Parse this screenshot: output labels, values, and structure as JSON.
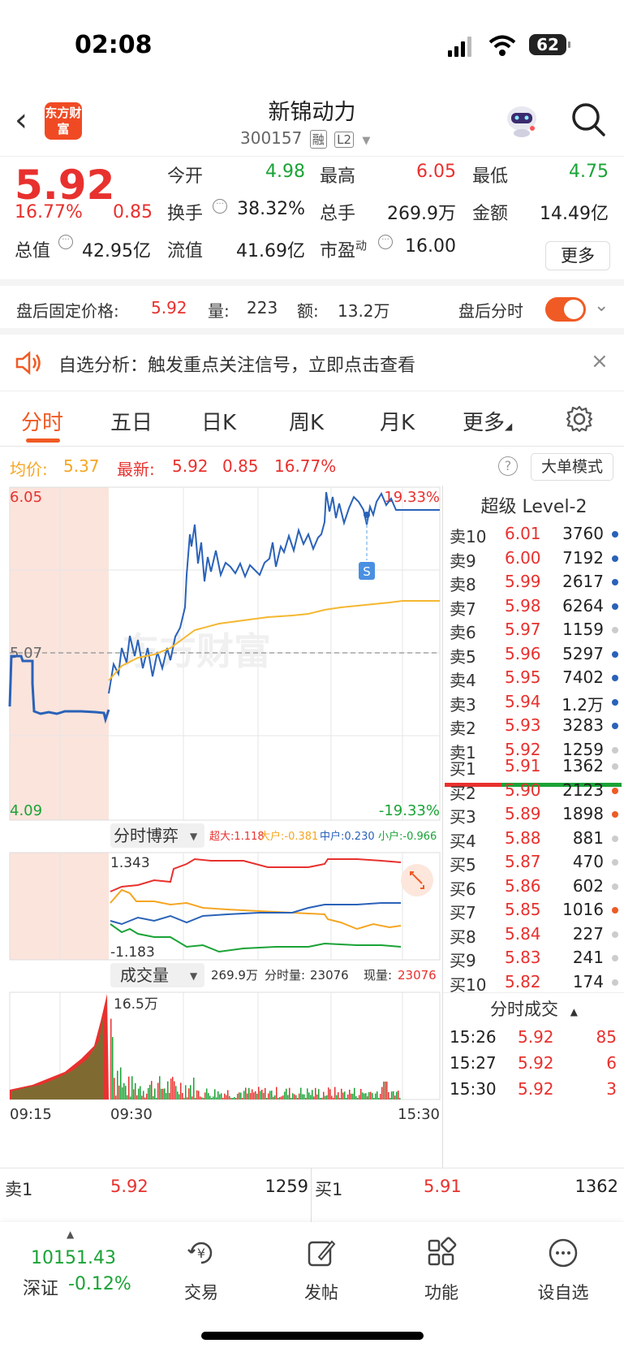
{
  "status_bar": {
    "time": "02:08",
    "battery": "62"
  },
  "header": {
    "logo_text": "东方财富",
    "stock_name": "新锦动力",
    "code": "300157",
    "tag1": "融",
    "tag2": "L2"
  },
  "quote": {
    "price": "5.92",
    "change_pct": "16.77%",
    "change": "0.85",
    "open_label": "今开",
    "open": "4.98",
    "high_label": "最高",
    "high": "6.05",
    "low_label": "最低",
    "low": "4.75",
    "turnover_label": "换手",
    "turnover": "38.32%",
    "volume_label": "总手",
    "volume": "269.9万",
    "amount_label": "金额",
    "amount": "14.49亿",
    "mktcap_label": "总值",
    "mktcap": "42.95亿",
    "float_label": "流值",
    "float": "41.69亿",
    "pe_label": "市盈",
    "pe_sup": "动",
    "pe": "16.00",
    "more_button": "更多"
  },
  "after_hours": {
    "price_label": "盘后固定价格:",
    "price": "5.92",
    "vol_label": "量:",
    "vol": "223",
    "amt_label": "额:",
    "amt": "13.2万",
    "timeshare_label": "盘后分时"
  },
  "alert": {
    "text": "自选分析：触发重点关注信号，立即点击查看"
  },
  "tabs": [
    "分时",
    "五日",
    "日K",
    "周K",
    "月K",
    "更多"
  ],
  "chart_info": {
    "avg_label": "均价:",
    "avg": "5.37",
    "latest_label": "最新:",
    "latest": "5.92",
    "latest_chg": "0.85",
    "latest_pct": "16.77%",
    "mode_button": "大单模式"
  },
  "chart_data": [
    {
      "type": "line",
      "panel": "分时",
      "y_max": "6.05",
      "y_min": "4.09",
      "y_mid": "5.07",
      "pct_max": "19.33%",
      "pct_min": "-19.33%",
      "time_start": "09:15",
      "time_open": "09:30",
      "time_end": "15:30",
      "watermark": "东方财富",
      "series": [
        {
          "name": "价格",
          "color": "#2a62b8"
        },
        {
          "name": "均价",
          "color": "#f5b730"
        }
      ],
      "marker": "S"
    },
    {
      "type": "line",
      "panel": "分时博弈",
      "selector": "分时博弈",
      "y_max": "1.343",
      "y_min": "-1.183",
      "legend": [
        {
          "name": "超大",
          "value": "1.118",
          "color": "#e8312e"
        },
        {
          "name": "大户",
          "value": "-0.381",
          "color": "#f5a623"
        },
        {
          "name": "中户",
          "value": "0.230",
          "color": "#2a62b8"
        },
        {
          "name": "小户",
          "value": "-0.966",
          "color": "#1aa336"
        }
      ]
    },
    {
      "type": "bar",
      "panel": "成交量",
      "selector": "成交量",
      "max_label": "16.5万",
      "total": "269.9万",
      "period_label": "分时量:",
      "period": "23076",
      "current_label": "现量:",
      "current": "23076"
    }
  ],
  "orderbook": {
    "title": "超级 Level-2",
    "asks": [
      {
        "l": "卖10",
        "p": "6.01",
        "v": "3760",
        "c": "#2a62b8"
      },
      {
        "l": "卖9",
        "p": "6.00",
        "v": "7192",
        "c": "#2a62b8"
      },
      {
        "l": "卖8",
        "p": "5.99",
        "v": "2617",
        "c": "#2a62b8"
      },
      {
        "l": "卖7",
        "p": "5.98",
        "v": "6264",
        "c": "#2a62b8"
      },
      {
        "l": "卖6",
        "p": "5.97",
        "v": "1159",
        "c": "#ccc"
      },
      {
        "l": "卖5",
        "p": "5.96",
        "v": "5297",
        "c": "#2a62b8"
      },
      {
        "l": "卖4",
        "p": "5.95",
        "v": "7402",
        "c": "#2a62b8"
      },
      {
        "l": "卖3",
        "p": "5.94",
        "v": "1.2万",
        "c": "#2a62b8"
      },
      {
        "l": "卖2",
        "p": "5.93",
        "v": "3283",
        "c": "#2a62b8"
      },
      {
        "l": "卖1",
        "p": "5.92",
        "v": "1259",
        "c": "#ccc"
      }
    ],
    "bids": [
      {
        "l": "买1",
        "p": "5.91",
        "v": "1362",
        "c": "#ccc"
      },
      {
        "l": "买2",
        "p": "5.90",
        "v": "2123",
        "c": "#f05a24"
      },
      {
        "l": "买3",
        "p": "5.89",
        "v": "1898",
        "c": "#f05a24"
      },
      {
        "l": "买4",
        "p": "5.88",
        "v": "881",
        "c": "#ccc"
      },
      {
        "l": "买5",
        "p": "5.87",
        "v": "470",
        "c": "#ccc"
      },
      {
        "l": "买6",
        "p": "5.86",
        "v": "602",
        "c": "#ccc"
      },
      {
        "l": "买7",
        "p": "5.85",
        "v": "1016",
        "c": "#f05a24"
      },
      {
        "l": "买8",
        "p": "5.84",
        "v": "227",
        "c": "#ccc"
      },
      {
        "l": "买9",
        "p": "5.83",
        "v": "241",
        "c": "#ccc"
      },
      {
        "l": "买10",
        "p": "5.82",
        "v": "174",
        "c": "#ccc"
      }
    ],
    "trades_title": "分时成交",
    "trades": [
      {
        "t": "15:26",
        "p": "5.92",
        "v": "85"
      },
      {
        "t": "15:27",
        "p": "5.92",
        "v": "6"
      },
      {
        "t": "15:30",
        "p": "5.92",
        "v": "3"
      }
    ]
  },
  "book_bottom": {
    "sell_label": "卖1",
    "sell_price": "5.92",
    "sell_vol": "1259",
    "buy_label": "买1",
    "buy_price": "5.91",
    "buy_vol": "1362"
  },
  "footer": {
    "index_value": "10151.43",
    "index_name": "深证",
    "index_chg": "-0.12%",
    "trade": "交易",
    "post": "发帖",
    "func": "功能",
    "watch": "设自选"
  }
}
